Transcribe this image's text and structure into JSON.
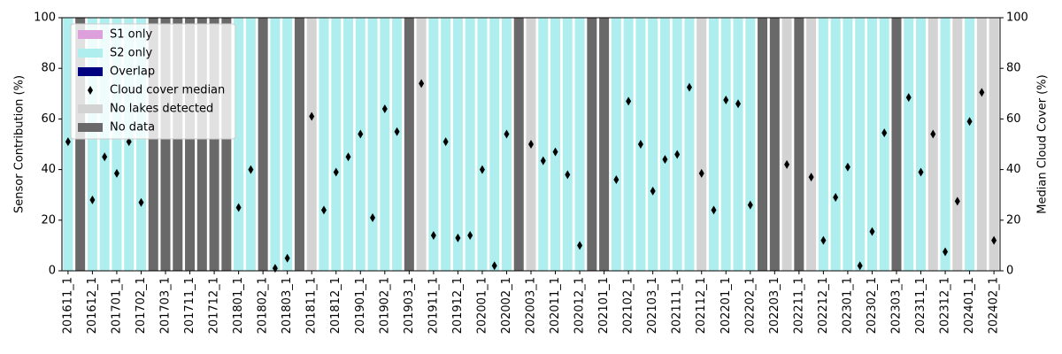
{
  "chart_data": {
    "type": "bar",
    "ylabel": "Sensor Contribution (%)",
    "y2label": "Median Cloud Cover (%)",
    "categories": [
      "201611_1",
      null,
      "201612_1",
      null,
      "201701_1",
      null,
      "201702_1",
      null,
      "201703_1",
      null,
      "201711_1",
      null,
      "201712_1",
      null,
      "201801_1",
      null,
      "201802_1",
      null,
      "201803_1",
      null,
      "201811_1",
      null,
      "201812_1",
      null,
      "201901_1",
      null,
      "201902_1",
      null,
      "201903_1",
      null,
      "201911_1",
      null,
      "201912_1",
      null,
      "202001_1",
      null,
      "202002_1",
      null,
      "202003_1",
      null,
      "202011_1",
      null,
      "202012_1",
      null,
      "202101_1",
      null,
      "202102_1",
      null,
      "202103_1",
      null,
      "202111_1",
      null,
      "202112_1",
      null,
      "202201_1",
      null,
      "202202_1",
      null,
      "202203_1",
      null,
      "202211_1",
      null,
      "202212_1",
      null,
      "202301_1",
      null,
      "202302_1",
      null,
      "202303_1",
      null,
      "202311_1",
      null,
      "202312_1",
      null,
      "202401_1",
      null,
      "202402_1"
    ],
    "series": [
      {
        "name": "S1 only",
        "color": "#dda0dd",
        "values": [
          0,
          0,
          0,
          0,
          0,
          0,
          0,
          0,
          0,
          0,
          0,
          0,
          0,
          0,
          0,
          0,
          0,
          0,
          0,
          0,
          0,
          0,
          0,
          0,
          0,
          0,
          0,
          0,
          0,
          0,
          0,
          0,
          0,
          0,
          0,
          0,
          0,
          0,
          0,
          0,
          0,
          0,
          0,
          0,
          0,
          0,
          0,
          0,
          0,
          0,
          0,
          0,
          0,
          0,
          0,
          0,
          0,
          0,
          0,
          0,
          0,
          0,
          0,
          0,
          0,
          0,
          0,
          0,
          0,
          0,
          0,
          0,
          0,
          0,
          0,
          0,
          0
        ]
      },
      {
        "name": "S2 only",
        "color": "#afeeee",
        "values": [
          100,
          0,
          100,
          100,
          100,
          100,
          100,
          0,
          0,
          0,
          0,
          0,
          0,
          0,
          100,
          100,
          0,
          100,
          100,
          0,
          0,
          100,
          100,
          100,
          100,
          100,
          100,
          100,
          0,
          0,
          100,
          100,
          100,
          100,
          100,
          100,
          100,
          0,
          0,
          100,
          100,
          100,
          100,
          0,
          0,
          100,
          100,
          100,
          100,
          100,
          100,
          100,
          0,
          100,
          100,
          100,
          100,
          0,
          0,
          0,
          0,
          0,
          100,
          100,
          100,
          100,
          100,
          100,
          0,
          100,
          100,
          0,
          100,
          0,
          100,
          0,
          0
        ]
      },
      {
        "name": "Overlap",
        "color": "#000080",
        "values": [
          0,
          0,
          0,
          0,
          0,
          0,
          0,
          0,
          0,
          0,
          0,
          0,
          0,
          0,
          0,
          0,
          0,
          0,
          0,
          0,
          0,
          0,
          0,
          0,
          0,
          0,
          0,
          0,
          0,
          0,
          0,
          0,
          0,
          0,
          0,
          0,
          0,
          0,
          0,
          0,
          0,
          0,
          0,
          0,
          0,
          0,
          0,
          0,
          0,
          0,
          0,
          0,
          0,
          0,
          0,
          0,
          0,
          0,
          0,
          0,
          0,
          0,
          0,
          0,
          0,
          0,
          0,
          0,
          0,
          0,
          0,
          0,
          0,
          0,
          0,
          0,
          0
        ]
      },
      {
        "name": "Cloud cover median",
        "color": "#000000",
        "axis": "y2",
        "marker": "diamond",
        "values": [
          51,
          null,
          28,
          45,
          38.5,
          51,
          27,
          null,
          null,
          null,
          null,
          null,
          null,
          null,
          25,
          40,
          null,
          1,
          5,
          null,
          61,
          24,
          39,
          45,
          54,
          21,
          64,
          55,
          null,
          74,
          14,
          51,
          13,
          14,
          40,
          2,
          54,
          null,
          50,
          43.5,
          47,
          38,
          10,
          null,
          null,
          36,
          67,
          50,
          31.5,
          44,
          46,
          72.5,
          38.5,
          24,
          67.5,
          66,
          26,
          null,
          null,
          42,
          null,
          37,
          12,
          29,
          41,
          2,
          15.5,
          54.5,
          null,
          68.5,
          39,
          54,
          7.5,
          27.5,
          59,
          70.5,
          12
        ]
      },
      {
        "name": "No lakes detected",
        "color": "#d3d3d3",
        "values": [
          0,
          0,
          0,
          0,
          0,
          0,
          0,
          0,
          0,
          0,
          0,
          0,
          0,
          0,
          0,
          0,
          0,
          0,
          0,
          0,
          100,
          0,
          0,
          0,
          0,
          0,
          0,
          0,
          0,
          100,
          0,
          0,
          0,
          0,
          0,
          0,
          0,
          0,
          100,
          0,
          0,
          0,
          0,
          0,
          0,
          0,
          0,
          0,
          0,
          0,
          0,
          0,
          100,
          0,
          0,
          0,
          0,
          0,
          0,
          100,
          0,
          100,
          0,
          0,
          0,
          0,
          0,
          0,
          0,
          0,
          0,
          100,
          0,
          100,
          0,
          100,
          100
        ]
      },
      {
        "name": "No data",
        "color": "#696969",
        "values": [
          0,
          100,
          0,
          0,
          0,
          0,
          0,
          100,
          100,
          100,
          100,
          100,
          100,
          100,
          0,
          0,
          100,
          0,
          0,
          100,
          0,
          0,
          0,
          0,
          0,
          0,
          0,
          0,
          100,
          0,
          0,
          0,
          0,
          0,
          0,
          0,
          0,
          100,
          0,
          0,
          0,
          0,
          0,
          100,
          100,
          0,
          0,
          0,
          0,
          0,
          0,
          0,
          0,
          0,
          0,
          0,
          0,
          100,
          100,
          0,
          100,
          0,
          0,
          0,
          0,
          0,
          0,
          0,
          100,
          0,
          0,
          0,
          0,
          0,
          0,
          0,
          0
        ]
      }
    ],
    "ylim": [
      0,
      100
    ],
    "yticks": [
      0,
      20,
      40,
      60,
      80,
      100
    ],
    "y2lim": [
      0,
      100
    ],
    "y2ticks": [
      0,
      20,
      40,
      60,
      80,
      100
    ],
    "legend": "upper left",
    "grid": false
  }
}
